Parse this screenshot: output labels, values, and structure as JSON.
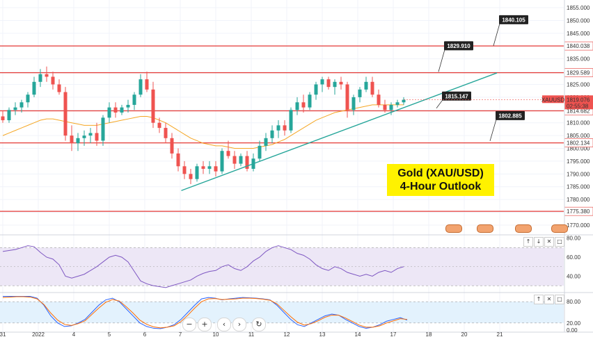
{
  "chart_data": {
    "type": "candlestick",
    "title_lines": [
      "Gold (XAU/USD)",
      "4-Hour Outlook"
    ],
    "symbol": "XAUUSD",
    "last_price": "1819.076",
    "countdown": "02:55:38",
    "price_axis": {
      "ylim": [
        1767,
        1858
      ],
      "ticks": [
        "1855.000",
        "1850.000",
        "1845.000",
        "1840.000",
        "1835.000",
        "1830.000",
        "1825.000",
        "1820.000",
        "1815.000",
        "1810.000",
        "1805.000",
        "1800.000",
        "1795.000",
        "1790.000",
        "1785.000",
        "1780.000",
        "1775.000",
        "1770.000"
      ]
    },
    "horizontal_levels": [
      {
        "value": 1840.038,
        "label": "1840.038"
      },
      {
        "value": 1829.589,
        "label": "1829.589"
      },
      {
        "value": 1814.682,
        "label": "1814.682"
      },
      {
        "value": 1802.134,
        "label": "1802.134"
      },
      {
        "value": 1775.38,
        "label": "1775.380"
      }
    ],
    "callouts": [
      {
        "text": "1840.105",
        "value": 1840.105
      },
      {
        "text": "1829.910",
        "value": 1829.91
      },
      {
        "text": "1815.147",
        "value": 1815.147
      },
      {
        "text": "1802.885",
        "value": 1802.885
      }
    ],
    "trendline": {
      "start": [
        57,
        1783.5
      ],
      "end": [
        141,
        1829.5
      ]
    },
    "candles": [
      [
        1812.5,
        1814.5,
        1810,
        1811
      ],
      [
        1811,
        1816,
        1810,
        1815
      ],
      [
        1815,
        1818,
        1813,
        1816
      ],
      [
        1816,
        1819,
        1814,
        1818
      ],
      [
        1818,
        1822,
        1816,
        1821
      ],
      [
        1821,
        1828,
        1820,
        1826
      ],
      [
        1826,
        1831,
        1824,
        1829
      ],
      [
        1829,
        1832,
        1826,
        1828
      ],
      [
        1828,
        1830,
        1823,
        1825
      ],
      [
        1825,
        1827,
        1821,
        1822
      ],
      [
        1822,
        1824,
        1803,
        1805
      ],
      [
        1805,
        1809,
        1799,
        1802
      ],
      [
        1802,
        1806,
        1799,
        1804
      ],
      [
        1804,
        1807,
        1801,
        1805
      ],
      [
        1805,
        1808,
        1802,
        1806
      ],
      [
        1806,
        1810,
        1801,
        1803
      ],
      [
        1803,
        1813,
        1801,
        1812
      ],
      [
        1812,
        1818,
        1810,
        1816
      ],
      [
        1816,
        1818,
        1812,
        1814
      ],
      [
        1814,
        1817,
        1813,
        1816
      ],
      [
        1816,
        1819,
        1814,
        1817
      ],
      [
        1817,
        1822,
        1815,
        1821
      ],
      [
        1821,
        1829,
        1820,
        1827
      ],
      [
        1827,
        1830,
        1822,
        1823
      ],
      [
        1823,
        1826,
        1808,
        1810
      ],
      [
        1810,
        1812,
        1806,
        1808
      ],
      [
        1808,
        1810,
        1802,
        1804
      ],
      [
        1804,
        1806,
        1796,
        1798
      ],
      [
        1798,
        1800,
        1791,
        1793
      ],
      [
        1793,
        1795,
        1788,
        1790
      ],
      [
        1790,
        1792,
        1786,
        1788
      ],
      [
        1788,
        1794,
        1787,
        1793
      ],
      [
        1793,
        1795,
        1790,
        1792
      ],
      [
        1792,
        1795,
        1790,
        1793
      ],
      [
        1793,
        1795,
        1789,
        1791
      ],
      [
        1791,
        1800,
        1790,
        1799
      ],
      [
        1799,
        1803,
        1796,
        1797
      ],
      [
        1797,
        1799,
        1792,
        1794
      ],
      [
        1794,
        1798,
        1793,
        1797
      ],
      [
        1797,
        1799,
        1791,
        1792
      ],
      [
        1792,
        1798,
        1791,
        1796
      ],
      [
        1796,
        1803,
        1795,
        1801
      ],
      [
        1801,
        1806,
        1799,
        1804
      ],
      [
        1804,
        1809,
        1802,
        1807
      ],
      [
        1807,
        1811,
        1804,
        1809
      ],
      [
        1809,
        1811,
        1805,
        1807
      ],
      [
        1807,
        1816,
        1806,
        1815
      ],
      [
        1815,
        1820,
        1813,
        1818
      ],
      [
        1818,
        1821,
        1814,
        1816
      ],
      [
        1816,
        1822,
        1815,
        1821
      ],
      [
        1821,
        1826,
        1819,
        1825
      ],
      [
        1825,
        1828,
        1822,
        1827
      ],
      [
        1827,
        1828,
        1823,
        1824
      ],
      [
        1824,
        1827,
        1821,
        1826
      ],
      [
        1826,
        1828,
        1823,
        1825
      ],
      [
        1825,
        1826,
        1812,
        1815
      ],
      [
        1815,
        1821,
        1813,
        1820
      ],
      [
        1820,
        1824,
        1818,
        1823
      ],
      [
        1823,
        1828,
        1822,
        1826
      ],
      [
        1826,
        1828,
        1820,
        1821
      ],
      [
        1821,
        1823,
        1816,
        1817
      ],
      [
        1817,
        1819,
        1814,
        1815
      ],
      [
        1815,
        1818,
        1813,
        1817
      ],
      [
        1817,
        1819,
        1816,
        1818
      ],
      [
        1818,
        1820,
        1817,
        1819
      ]
    ],
    "ma_values": [
      1805,
      1806,
      1807,
      1808,
      1809,
      1810,
      1811,
      1811.5,
      1811.5,
      1811,
      1810.5,
      1810,
      1809.5,
      1809,
      1809,
      1809,
      1809.5,
      1810,
      1810.5,
      1811,
      1811.5,
      1812,
      1812.5,
      1812.5,
      1812,
      1811,
      1810,
      1808.5,
      1807,
      1805.5,
      1804,
      1803,
      1802,
      1801.5,
      1801,
      1801,
      1800.5,
      1800,
      1800,
      1800,
      1800,
      1800.5,
      1801,
      1801.5,
      1802.5,
      1803.5,
      1805,
      1806.5,
      1808,
      1809.5,
      1811,
      1812,
      1813,
      1814,
      1814.5,
      1815,
      1815.5,
      1816,
      1816.5,
      1817,
      1817,
      1817,
      1817,
      1817,
      1817
    ],
    "rsi": {
      "ylim": [
        25,
        82
      ],
      "ticks": [
        "80.00",
        "60.00",
        "40.00"
      ],
      "bands": [
        70,
        30
      ],
      "values": [
        66,
        67,
        68,
        70,
        72,
        71,
        65,
        60,
        58,
        52,
        40,
        38,
        40,
        42,
        46,
        50,
        55,
        60,
        62,
        60,
        55,
        45,
        35,
        32,
        30,
        29,
        28,
        30,
        32,
        34,
        36,
        40,
        43,
        45,
        46,
        50,
        52,
        48,
        46,
        50,
        56,
        60,
        66,
        70,
        72,
        70,
        68,
        64,
        62,
        58,
        52,
        48,
        46,
        50,
        48,
        44,
        42,
        40,
        42,
        40,
        44,
        46,
        44,
        48,
        50
      ]
    },
    "stochastic": {
      "ylim": [
        -2,
        100
      ],
      "ticks": [
        "80.00",
        "20.00",
        "0.00"
      ],
      "bands": [
        80,
        20
      ],
      "k": [
        95,
        95,
        95,
        95,
        95,
        90,
        70,
        40,
        20,
        10,
        12,
        20,
        30,
        50,
        70,
        85,
        90,
        80,
        60,
        40,
        20,
        10,
        5,
        4,
        8,
        15,
        30,
        50,
        70,
        88,
        92,
        90,
        85,
        88,
        90,
        92,
        91,
        90,
        88,
        85,
        70,
        50,
        30,
        15,
        10,
        20,
        30,
        40,
        45,
        42,
        30,
        20,
        10,
        5,
        8,
        15,
        25,
        30,
        35,
        28
      ],
      "d": [
        92,
        93,
        94,
        94,
        93,
        88,
        72,
        48,
        28,
        16,
        13,
        18,
        26,
        44,
        62,
        78,
        86,
        82,
        66,
        48,
        28,
        16,
        9,
        6,
        8,
        12,
        24,
        42,
        62,
        80,
        88,
        89,
        86,
        87,
        88,
        90,
        90,
        89,
        87,
        84,
        74,
        56,
        38,
        22,
        14,
        18,
        26,
        36,
        42,
        42,
        34,
        24,
        14,
        8,
        8,
        12,
        20,
        26,
        32,
        30
      ]
    },
    "x_axis_labels": [
      "31",
      "2022",
      "4",
      "5",
      "6",
      "7",
      "10",
      "11",
      "12",
      "13",
      "14",
      "17",
      "18",
      "20",
      "21"
    ]
  }
}
